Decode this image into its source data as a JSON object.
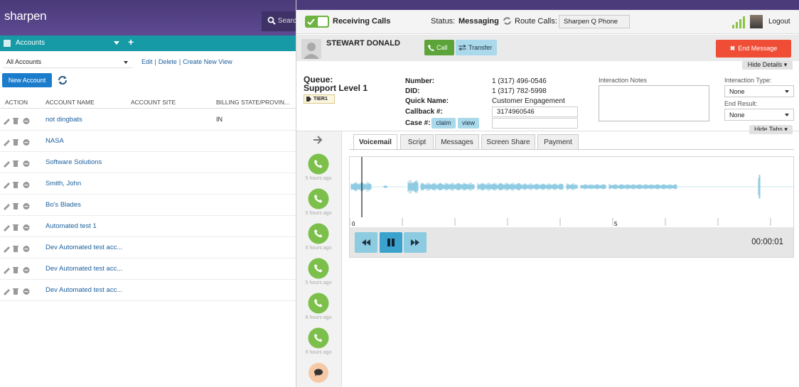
{
  "left_panel": {
    "logo": "sharpen",
    "search": "Search",
    "accounts_bar": {
      "title": "Accounts",
      "add": "+"
    },
    "view_select": "All Accounts",
    "view_links": [
      "Edit",
      "|",
      "Delete",
      "|",
      "Create New View"
    ],
    "new_account": "New Account",
    "table": {
      "columns": [
        "ACTION",
        "ACCOUNT NAME",
        "ACCOUNT SITE",
        "BILLING STATE/PROVIN..."
      ],
      "rows": [
        {
          "name": "not dingbats",
          "state": "IN"
        },
        {
          "name": "NASA"
        },
        {
          "name": "Software Solutions"
        },
        {
          "name": "Smith, John"
        },
        {
          "name": "Bo's Blades"
        },
        {
          "name": "Automated test 1"
        },
        {
          "name": "Dev Automated test acc..."
        },
        {
          "name": "Dev Automated test acc..."
        },
        {
          "name": "Dev Automated test acc..."
        }
      ]
    }
  },
  "toolbar": {
    "receiving": "Receiving Calls",
    "status_label": "Status:",
    "status_value": "Messaging",
    "route_label": "Route Calls:",
    "route_value": "Sharpen Q Phone",
    "logout": "Logout"
  },
  "contact": {
    "name": "STEWART DONALD",
    "call": "Call",
    "transfer": "Transfer",
    "end_message": "End Message",
    "hide_details": "Hide Details"
  },
  "details": {
    "queue_label": "Queue:",
    "queue_name": "Support Level 1",
    "tier": "TIER1",
    "fields": [
      {
        "label": "Number:",
        "value": "1 (317) 496-0546"
      },
      {
        "label": "DID:",
        "value": "1 (317) 782-5998"
      },
      {
        "label": "Quick Name:",
        "value": "Customer Engagement"
      },
      {
        "label": "Callback #:",
        "value": "3174960546"
      },
      {
        "label": "Case #:"
      }
    ],
    "claim": "claim",
    "view": "view",
    "notes_label": "Interaction Notes",
    "interaction_type_label": "Interaction Type:",
    "interaction_type_value": "None",
    "end_result_label": "End Result:",
    "end_result_value": "None",
    "hide_tabs": "Hide Tabs"
  },
  "history": [
    "5 hours ago",
    "5 hours ago",
    "5 hours ago",
    "5 hours ago",
    "8 hours ago",
    "9 hours ago"
  ],
  "tabs": [
    "Voicemail",
    "Script",
    "Messages",
    "Screen Share",
    "Payment"
  ],
  "player": {
    "timeline_labels": [
      "0",
      "5"
    ],
    "time": "00:00:01"
  }
}
